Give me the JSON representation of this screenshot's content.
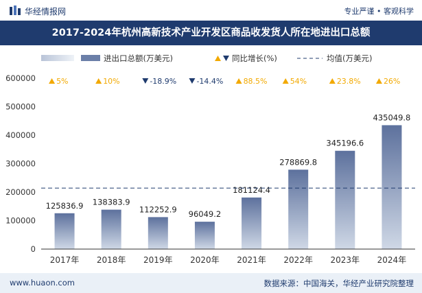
{
  "header": {
    "brand": "华经情报网",
    "tagline": "专业严谨 • 客观科学",
    "title": "2017-2024年杭州高新技术产业开发区商品收发货人所在地进出口总额"
  },
  "footer": {
    "site": "www.huaon.com",
    "source": "数据来源：中国海关，华经产业研究院整理"
  },
  "colors": {
    "bar": "#6b7fa8",
    "up": "#f2a900",
    "down": "#1f3b6e",
    "mean": "#1f3b6e",
    "title_bg": "#1f3b6e"
  },
  "chart_data": {
    "type": "bar",
    "categories": [
      "2017年",
      "2018年",
      "2019年",
      "2020年",
      "2021年",
      "2022年",
      "2023年",
      "2024年"
    ],
    "values": [
      125836.9,
      138383.9,
      112252.9,
      96049.2,
      181124.4,
      278869.8,
      345196.6,
      435049.8
    ],
    "value_labels": [
      "125836.9",
      "138383.9",
      "112252.9",
      "96049.2",
      "181124.4",
      "278869.8",
      "345196.6",
      "435049.8"
    ],
    "growth_labels": [
      "5%",
      "10%",
      "-18.9%",
      "-14.4%",
      "88.5%",
      "54%",
      "23.8%",
      "26%"
    ],
    "growth_direction": [
      "up",
      "up",
      "down",
      "down",
      "up",
      "up",
      "up",
      "up"
    ],
    "mean_value": 214095.4,
    "ylim": [
      0,
      600000
    ],
    "yticks": [
      0,
      100000,
      200000,
      300000,
      400000,
      500000,
      600000
    ],
    "legend": {
      "bar": "进出口总额(万美元)",
      "growth": "同比增长(%)",
      "mean": "均值(万美元)",
      "position": "top"
    }
  }
}
